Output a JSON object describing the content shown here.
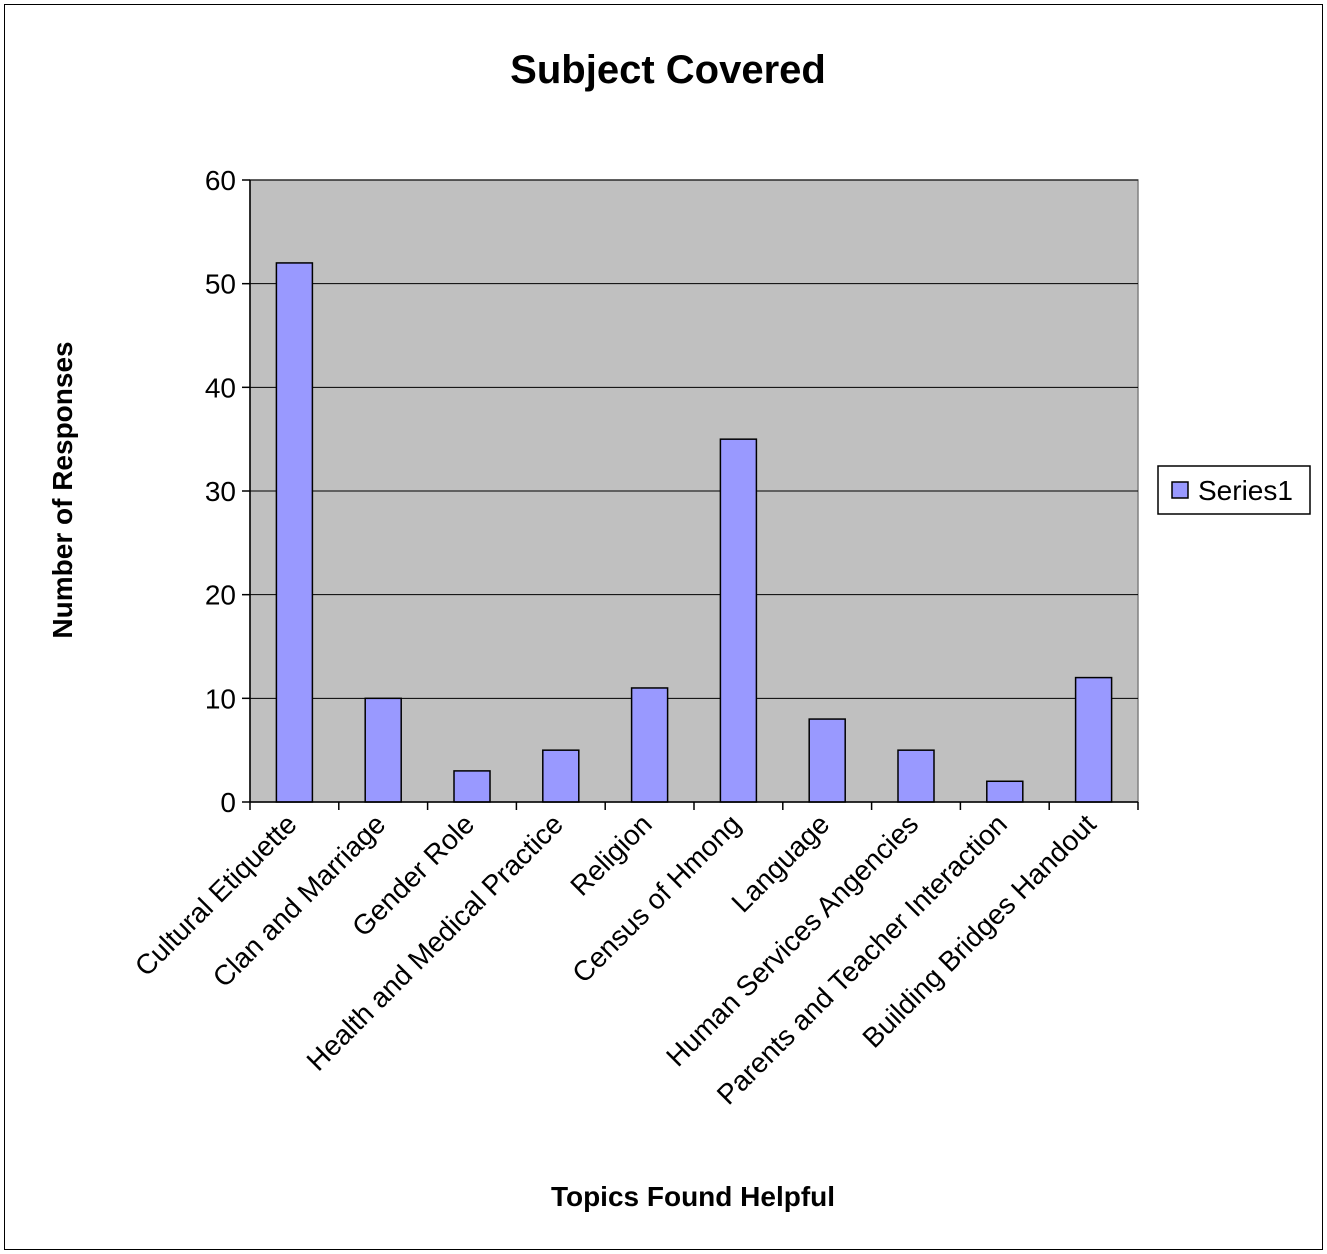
{
  "colors": {
    "plot_area": "#c0c0c0",
    "bar_fill": "#9999ff",
    "bar_stroke": "#000000",
    "gridline": "#000000"
  },
  "chart_data": {
    "type": "bar",
    "title": "Subject Covered",
    "xlabel": "Topics Found Helpful",
    "ylabel": "Number of Responses",
    "categories": [
      "Cultural Etiquette",
      "Clan and Marriage",
      "Gender Role",
      "Health and Medical Practice",
      "Religion",
      "Census of Hmong",
      "Language",
      "Human Services Angencies",
      "Parents and Teacher Interaction",
      "Building Bridges Handout"
    ],
    "series": [
      {
        "name": "Series1",
        "values": [
          52,
          10,
          3,
          5,
          11,
          35,
          8,
          5,
          2,
          12
        ]
      }
    ],
    "ylim": [
      0,
      60
    ],
    "yticks": [
      0,
      10,
      20,
      30,
      40,
      50,
      60
    ],
    "grid": true,
    "legend": "right"
  }
}
